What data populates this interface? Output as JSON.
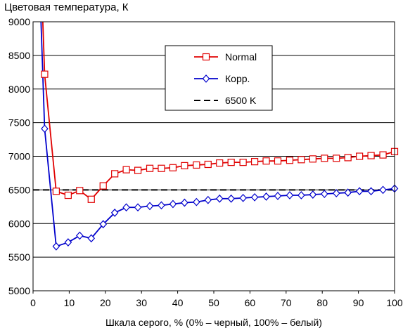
{
  "chart_data": {
    "type": "line",
    "title": "Цветовая температура, К",
    "xlabel": "Шкала серого, % (0% – черный, 100% – белый)",
    "ylabel": "",
    "xlim": [
      0,
      100
    ],
    "ylim": [
      5000,
      9000
    ],
    "x_ticks": [
      0,
      10,
      20,
      30,
      40,
      50,
      60,
      70,
      80,
      90,
      100
    ],
    "y_ticks": [
      5000,
      5500,
      6000,
      6500,
      7000,
      7500,
      8000,
      8500,
      9000
    ],
    "grid": "horizontal",
    "legend_position": "top-center",
    "series": [
      {
        "name": "Normal",
        "color": "#e00000",
        "marker": "square",
        "x": [
          3.2,
          6.4,
          9.7,
          12.9,
          16.1,
          19.4,
          22.6,
          25.8,
          29.0,
          32.3,
          35.5,
          38.7,
          41.9,
          45.2,
          48.4,
          51.6,
          54.8,
          58.1,
          61.3,
          64.5,
          67.7,
          71.0,
          74.2,
          77.4,
          80.6,
          83.9,
          87.1,
          90.3,
          93.5,
          96.8,
          100
        ],
        "values": [
          8220,
          6480,
          6420,
          6490,
          6360,
          6560,
          6740,
          6800,
          6790,
          6820,
          6820,
          6830,
          6860,
          6870,
          6880,
          6900,
          6910,
          6910,
          6920,
          6930,
          6930,
          6940,
          6950,
          6960,
          6970,
          6970,
          6980,
          7000,
          7010,
          7020,
          7070
        ],
        "line_x_start": 2.7,
        "line_y_start": 9000
      },
      {
        "name": "Корр.",
        "color": "#0000cc",
        "marker": "diamond",
        "x": [
          3.2,
          6.4,
          9.7,
          12.9,
          16.1,
          19.4,
          22.6,
          25.8,
          29.0,
          32.3,
          35.5,
          38.7,
          41.9,
          45.2,
          48.4,
          51.6,
          54.8,
          58.1,
          61.3,
          64.5,
          67.7,
          71.0,
          74.2,
          77.4,
          80.6,
          83.9,
          87.1,
          90.3,
          93.5,
          96.8,
          100
        ],
        "values": [
          7410,
          5660,
          5720,
          5820,
          5780,
          5990,
          6160,
          6240,
          6240,
          6260,
          6270,
          6290,
          6310,
          6320,
          6350,
          6370,
          6370,
          6380,
          6390,
          6400,
          6410,
          6420,
          6420,
          6430,
          6440,
          6450,
          6460,
          6480,
          6480,
          6500,
          6520
        ],
        "line_x_start": 2.2,
        "line_y_start": 9000
      },
      {
        "name": "6500 K",
        "color": "#000000",
        "style": "dashed",
        "x": [
          0,
          100
        ],
        "values": [
          6500,
          6500
        ]
      }
    ]
  }
}
